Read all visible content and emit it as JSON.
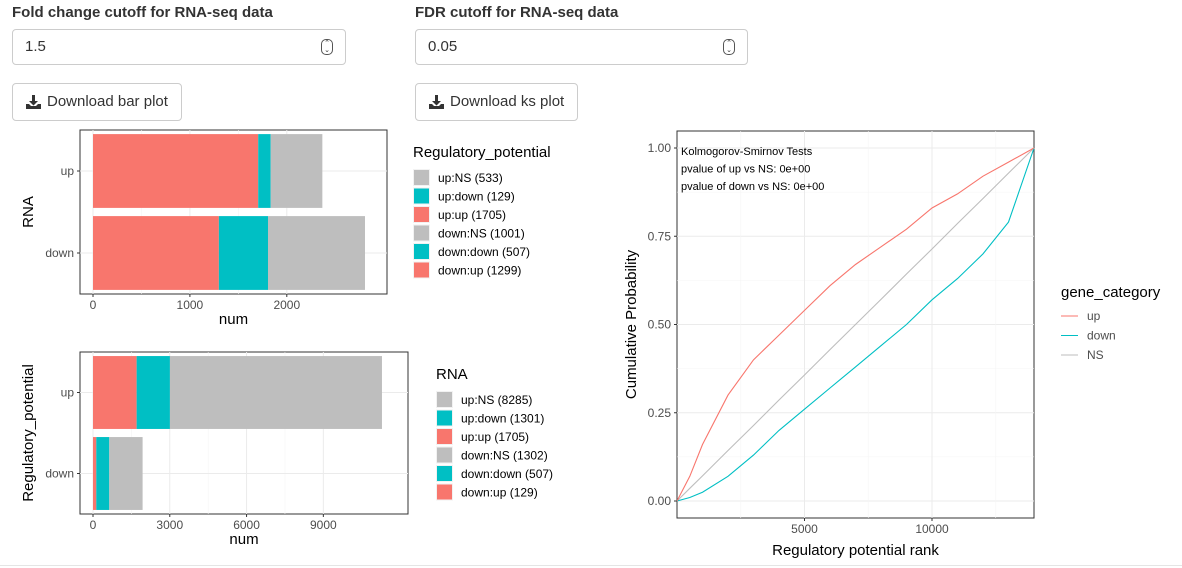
{
  "fc_input": {
    "label": "Fold change cutoff for RNA-seq data",
    "value": "1.5"
  },
  "fdr_input": {
    "label": "FDR cutoff for RNA-seq data",
    "value": "0.05"
  },
  "buttons": {
    "download_bar": {
      "label": "Download bar plot",
      "icon": "download-icon"
    },
    "download_ks": {
      "label": "Download ks plot",
      "icon": "download-icon"
    }
  },
  "colors": {
    "up": "#F8766D",
    "down": "#00BFC4",
    "ns": "#BEBEBE"
  },
  "chart_data": [
    {
      "type": "bar",
      "orientation": "horizontal",
      "stacked": true,
      "categories": [
        "up",
        "down"
      ],
      "xlabel": "num",
      "ylabel": "RNA",
      "xlim": [
        0,
        2900
      ],
      "xticks": [
        "0",
        "1000",
        "2000"
      ],
      "xtick_values": [
        0,
        1000,
        2000
      ],
      "legend_title": "Regulatory_potential",
      "legend": [
        "up:NS (533)",
        "up:down (129)",
        "up:up (1705)",
        "down:NS (1001)",
        "down:down (507)",
        "down:up (1299)"
      ],
      "series": [
        {
          "name": "up",
          "color": "#F8766D",
          "values": [
            1705,
            1299
          ]
        },
        {
          "name": "down",
          "color": "#00BFC4",
          "values": [
            129,
            507
          ]
        },
        {
          "name": "NS",
          "color": "#BEBEBE",
          "values": [
            533,
            1001
          ]
        }
      ]
    },
    {
      "type": "bar",
      "orientation": "horizontal",
      "stacked": true,
      "categories": [
        "up",
        "down"
      ],
      "xlabel": "num",
      "ylabel": "Regulatory_potential",
      "xlim": [
        0,
        11800
      ],
      "xticks": [
        "0",
        "3000",
        "6000",
        "9000"
      ],
      "xtick_values": [
        0,
        3000,
        6000,
        9000
      ],
      "legend_title": "RNA",
      "legend": [
        "up:NS (8285)",
        "up:down (1301)",
        "up:up (1705)",
        "down:NS (1302)",
        "down:down (507)",
        "down:up (129)"
      ],
      "series": [
        {
          "name": "up",
          "color": "#F8766D",
          "values": [
            1705,
            129
          ]
        },
        {
          "name": "down",
          "color": "#00BFC4",
          "values": [
            1301,
            507
          ]
        },
        {
          "name": "NS",
          "color": "#BEBEBE",
          "values": [
            8285,
            1302
          ]
        }
      ]
    },
    {
      "type": "line",
      "xlabel": "Regulatory potential rank",
      "ylabel": "Cumulative Probability",
      "xlim": [
        0,
        14000
      ],
      "ylim": [
        0,
        1.0
      ],
      "xticks": [
        "5000",
        "10000"
      ],
      "xtick_values": [
        5000,
        10000
      ],
      "yticks": [
        "0.00",
        "0.25",
        "0.50",
        "0.75",
        "1.00"
      ],
      "ytick_values": [
        0,
        0.25,
        0.5,
        0.75,
        1.0
      ],
      "annotations": [
        "Kolmogorov-Smirnov Tests",
        "pvalue of up vs NS: 0e+00",
        "pvalue of down vs NS: 0e+00"
      ],
      "legend_title": "gene_category",
      "legend": [
        "up",
        "down",
        "NS"
      ],
      "x": [
        0,
        500,
        1000,
        2000,
        3000,
        4000,
        5000,
        6000,
        7000,
        8000,
        9000,
        10000,
        11000,
        12000,
        13000,
        14000
      ],
      "series": [
        {
          "name": "up",
          "color": "#F8766D",
          "values": [
            0,
            0.07,
            0.16,
            0.3,
            0.4,
            0.47,
            0.54,
            0.61,
            0.67,
            0.72,
            0.77,
            0.83,
            0.87,
            0.92,
            0.96,
            1.0
          ]
        },
        {
          "name": "down",
          "color": "#00BFC4",
          "values": [
            0,
            0.01,
            0.025,
            0.07,
            0.13,
            0.2,
            0.26,
            0.32,
            0.38,
            0.44,
            0.5,
            0.57,
            0.63,
            0.7,
            0.79,
            1.0
          ]
        },
        {
          "name": "NS",
          "color": "#BEBEBE",
          "values": [
            0,
            0.036,
            0.071,
            0.143,
            0.214,
            0.286,
            0.357,
            0.429,
            0.5,
            0.571,
            0.643,
            0.714,
            0.786,
            0.857,
            0.929,
            1.0
          ]
        }
      ]
    }
  ]
}
